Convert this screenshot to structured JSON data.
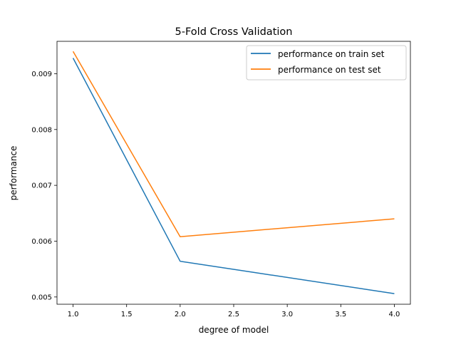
{
  "chart_data": {
    "type": "line",
    "title": "5-Fold Cross Validation",
    "xlabel": "degree of model",
    "ylabel": "performance",
    "x": [
      1.0,
      2.0,
      4.0
    ],
    "series": [
      {
        "name": "performance on train set",
        "color": "#1f77b4",
        "values": [
          0.00928,
          0.00564,
          0.00506
        ]
      },
      {
        "name": "performance on test set",
        "color": "#ff7f0e",
        "values": [
          0.0094,
          0.00608,
          0.0064
        ]
      }
    ],
    "xlim": [
      0.85,
      4.15
    ],
    "ylim": [
      0.00487,
      0.00958
    ],
    "x_ticks": [
      1.0,
      1.5,
      2.0,
      2.5,
      3.0,
      3.5,
      4.0
    ],
    "x_tick_labels": [
      "1.0",
      "1.5",
      "2.0",
      "2.5",
      "3.0",
      "3.5",
      "4.0"
    ],
    "y_ticks": [
      0.005,
      0.006,
      0.007,
      0.008,
      0.009
    ],
    "y_tick_labels": [
      "0.005",
      "0.006",
      "0.007",
      "0.008",
      "0.009"
    ],
    "grid": false,
    "legend_position": "top-right"
  }
}
